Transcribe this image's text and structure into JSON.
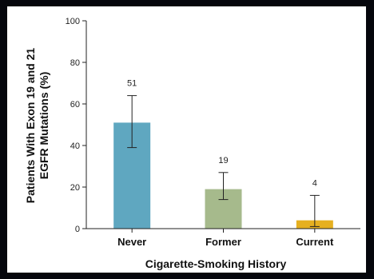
{
  "chart_data": {
    "type": "bar",
    "categories": [
      "Never",
      "Former",
      "Current"
    ],
    "values": [
      51,
      19,
      4
    ],
    "error_bars": [
      {
        "low": 39,
        "high": 64
      },
      {
        "low": 14,
        "high": 27
      },
      {
        "low": 1,
        "high": 16
      }
    ],
    "data_labels": [
      "51",
      "19",
      "4"
    ],
    "colors": [
      "#5fa7c0",
      "#a6ba8c",
      "#e6b020"
    ],
    "title": "",
    "xlabel": "Cigarette-Smoking History",
    "ylabel_line1": "Patients With Exon 19 and 21",
    "ylabel_line2": "EGFR Mutations (%)",
    "ylim": [
      0,
      100
    ],
    "yticks": [
      0,
      20,
      40,
      60,
      80,
      100
    ],
    "grid": false,
    "legend": "none"
  }
}
